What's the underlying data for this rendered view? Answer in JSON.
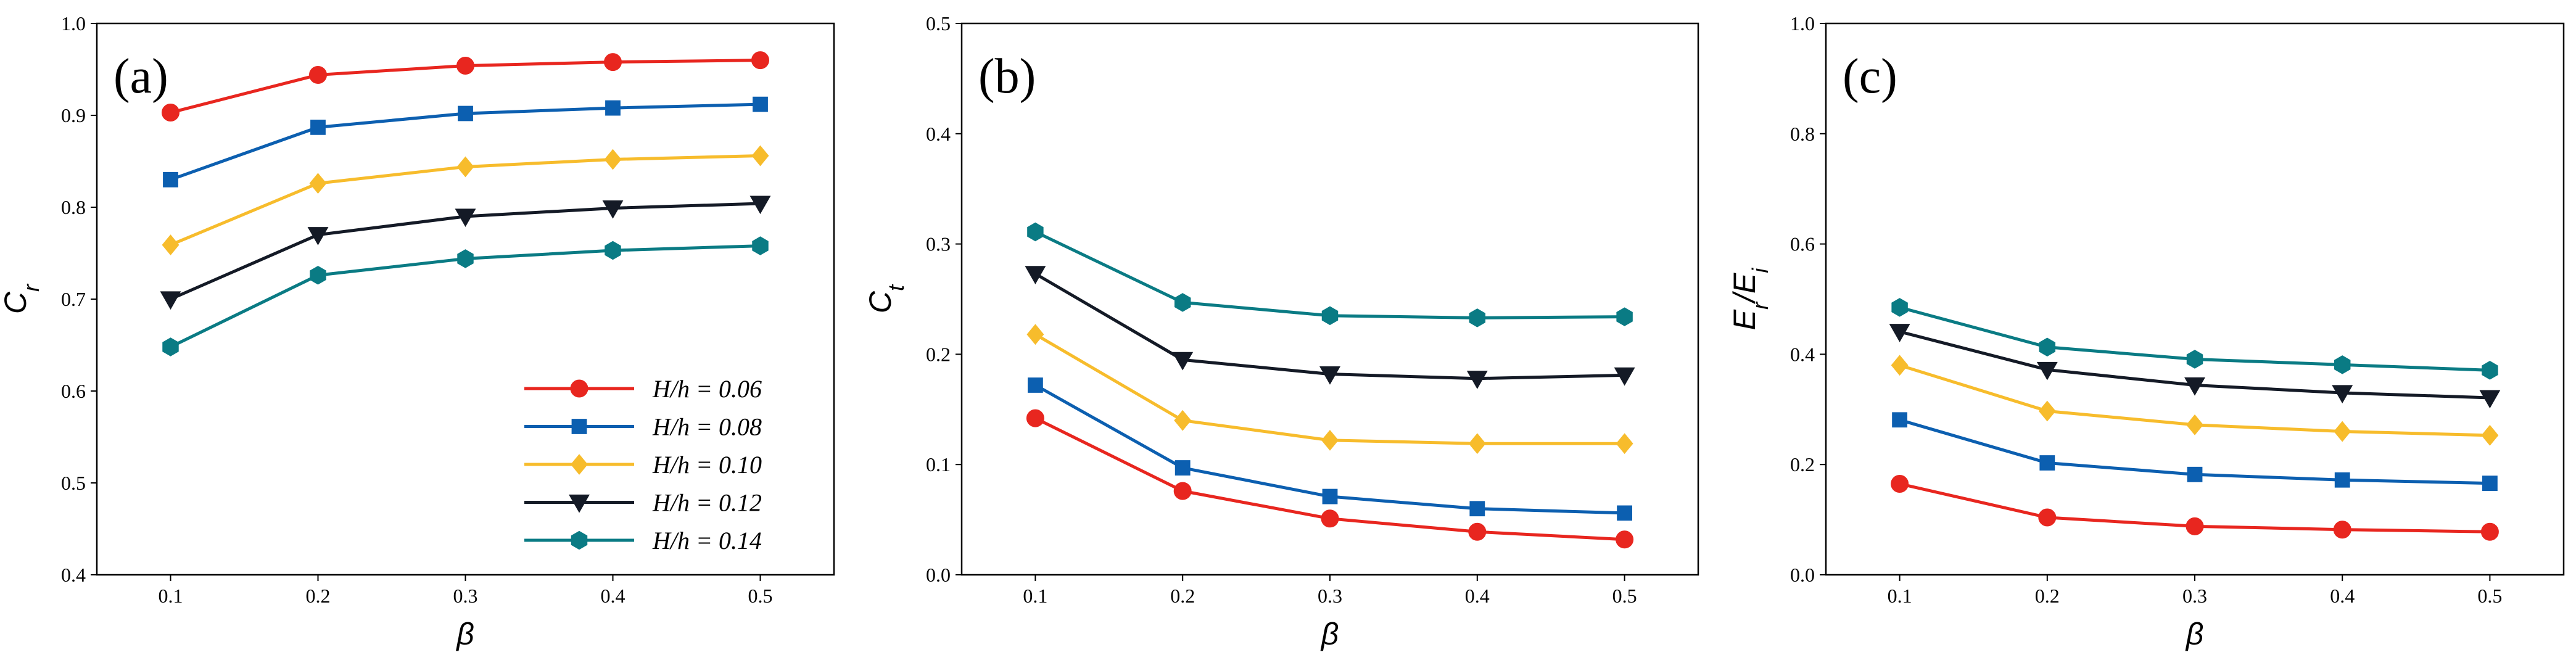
{
  "chart_data": [
    {
      "type": "line",
      "panel_label": "(a)",
      "x": [
        0.1,
        0.2,
        0.3,
        0.4,
        0.5
      ],
      "x_ticks": [
        "0.1",
        "0.2",
        "0.3",
        "0.4",
        "0.5"
      ],
      "xlabel": "β",
      "ylabel_main": "C",
      "ylabel_sub": "r",
      "ylim": [
        0.4,
        1.0
      ],
      "y_ticks": [
        "0.4",
        "0.5",
        "0.6",
        "0.7",
        "0.8",
        "0.9",
        "1.0"
      ],
      "legend_position": "bottom-right",
      "series": [
        {
          "name": "H/h = 0.06",
          "color": "#e8261f",
          "marker": "circle",
          "values": [
            0.903,
            0.944,
            0.954,
            0.958,
            0.96
          ]
        },
        {
          "name": "H/h = 0.08",
          "color": "#0c5fb0",
          "marker": "square",
          "values": [
            0.83,
            0.887,
            0.902,
            0.908,
            0.912
          ]
        },
        {
          "name": "H/h = 0.10",
          "color": "#f7bc2c",
          "marker": "diamond",
          "values": [
            0.759,
            0.826,
            0.844,
            0.852,
            0.856
          ]
        },
        {
          "name": "H/h = 0.12",
          "color": "#141a26",
          "marker": "triangle-down",
          "values": [
            0.7,
            0.77,
            0.79,
            0.799,
            0.804
          ]
        },
        {
          "name": "H/h = 0.14",
          "color": "#0a7b84",
          "marker": "hexagon",
          "values": [
            0.648,
            0.726,
            0.744,
            0.753,
            0.758
          ]
        }
      ]
    },
    {
      "type": "line",
      "panel_label": "(b)",
      "x": [
        0.1,
        0.2,
        0.3,
        0.4,
        0.5
      ],
      "x_ticks": [
        "0.1",
        "0.2",
        "0.3",
        "0.4",
        "0.5"
      ],
      "xlabel": "β",
      "ylabel_main": "C",
      "ylabel_sub": "t",
      "ylim": [
        0.0,
        0.5
      ],
      "y_ticks": [
        "0.0",
        "0.1",
        "0.2",
        "0.3",
        "0.4",
        "0.5"
      ],
      "series": [
        {
          "name": "H/h = 0.06",
          "color": "#e8261f",
          "marker": "circle",
          "values": [
            0.142,
            0.076,
            0.051,
            0.039,
            0.032
          ]
        },
        {
          "name": "H/h = 0.08",
          "color": "#0c5fb0",
          "marker": "square",
          "values": [
            0.172,
            0.097,
            0.071,
            0.06,
            0.056
          ]
        },
        {
          "name": "H/h = 0.10",
          "color": "#f7bc2c",
          "marker": "diamond",
          "values": [
            0.218,
            0.14,
            0.122,
            0.119,
            0.119
          ]
        },
        {
          "name": "H/h = 0.12",
          "color": "#141a26",
          "marker": "triangle-down",
          "values": [
            0.273,
            0.195,
            0.182,
            0.178,
            0.181
          ]
        },
        {
          "name": "H/h = 0.14",
          "color": "#0a7b84",
          "marker": "hexagon",
          "values": [
            0.311,
            0.247,
            0.235,
            0.233,
            0.234
          ]
        }
      ]
    },
    {
      "type": "line",
      "panel_label": "(c)",
      "x": [
        0.1,
        0.2,
        0.3,
        0.4,
        0.5
      ],
      "x_ticks": [
        "0.1",
        "0.2",
        "0.3",
        "0.4",
        "0.5"
      ],
      "xlabel": "β",
      "ylabel_main": "E",
      "ylabel_sub": "r",
      "ylabel_sep": "/",
      "ylabel_main2": "E",
      "ylabel_sub2": "i",
      "ylim": [
        0.0,
        1.0
      ],
      "y_ticks": [
        "0.0",
        "0.2",
        "0.4",
        "0.6",
        "0.8",
        "1.0"
      ],
      "series": [
        {
          "name": "H/h = 0.06",
          "color": "#e8261f",
          "marker": "circle",
          "values": [
            0.165,
            0.104,
            0.088,
            0.082,
            0.078
          ]
        },
        {
          "name": "H/h = 0.08",
          "color": "#0c5fb0",
          "marker": "square",
          "values": [
            0.281,
            0.203,
            0.182,
            0.172,
            0.166
          ]
        },
        {
          "name": "H/h = 0.10",
          "color": "#f7bc2c",
          "marker": "diamond",
          "values": [
            0.38,
            0.297,
            0.272,
            0.26,
            0.253
          ]
        },
        {
          "name": "H/h = 0.12",
          "color": "#141a26",
          "marker": "triangle-down",
          "values": [
            0.441,
            0.372,
            0.344,
            0.33,
            0.321
          ]
        },
        {
          "name": "H/h = 0.14",
          "color": "#0a7b84",
          "marker": "hexagon",
          "values": [
            0.485,
            0.413,
            0.391,
            0.381,
            0.371
          ]
        }
      ]
    }
  ]
}
